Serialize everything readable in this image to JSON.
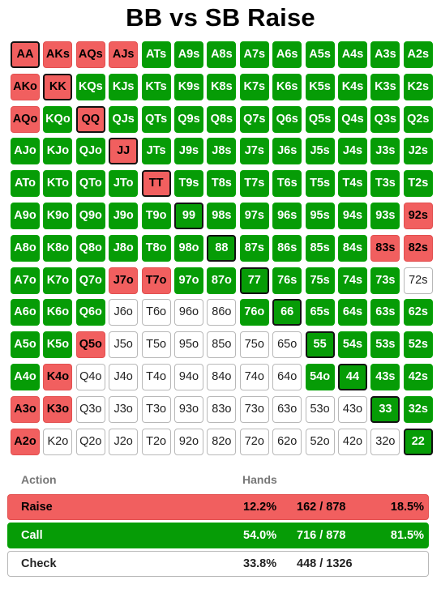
{
  "title": "BB vs SB Raise",
  "colors": {
    "raise": "#f15f5f",
    "call": "#069c06",
    "check": "#ffffff"
  },
  "grid": {
    "rows": [
      [
        "AA",
        "AKs",
        "AQs",
        "AJs",
        "ATs",
        "A9s",
        "A8s",
        "A7s",
        "A6s",
        "A5s",
        "A4s",
        "A3s",
        "A2s"
      ],
      [
        "AKo",
        "KK",
        "KQs",
        "KJs",
        "KTs",
        "K9s",
        "K8s",
        "K7s",
        "K6s",
        "K5s",
        "K4s",
        "K3s",
        "K2s"
      ],
      [
        "AQo",
        "KQo",
        "QQ",
        "QJs",
        "QTs",
        "Q9s",
        "Q8s",
        "Q7s",
        "Q6s",
        "Q5s",
        "Q4s",
        "Q3s",
        "Q2s"
      ],
      [
        "AJo",
        "KJo",
        "QJo",
        "JJ",
        "JTs",
        "J9s",
        "J8s",
        "J7s",
        "J6s",
        "J5s",
        "J4s",
        "J3s",
        "J2s"
      ],
      [
        "ATo",
        "KTo",
        "QTo",
        "JTo",
        "TT",
        "T9s",
        "T8s",
        "T7s",
        "T6s",
        "T5s",
        "T4s",
        "T3s",
        "T2s"
      ],
      [
        "A9o",
        "K9o",
        "Q9o",
        "J9o",
        "T9o",
        "99",
        "98s",
        "97s",
        "96s",
        "95s",
        "94s",
        "93s",
        "92s"
      ],
      [
        "A8o",
        "K8o",
        "Q8o",
        "J8o",
        "T8o",
        "98o",
        "88",
        "87s",
        "86s",
        "85s",
        "84s",
        "83s",
        "82s"
      ],
      [
        "A7o",
        "K7o",
        "Q7o",
        "J7o",
        "T7o",
        "97o",
        "87o",
        "77",
        "76s",
        "75s",
        "74s",
        "73s",
        "72s"
      ],
      [
        "A6o",
        "K6o",
        "Q6o",
        "J6o",
        "T6o",
        "96o",
        "86o",
        "76o",
        "66",
        "65s",
        "64s",
        "63s",
        "62s"
      ],
      [
        "A5o",
        "K5o",
        "Q5o",
        "J5o",
        "T5o",
        "95o",
        "85o",
        "75o",
        "65o",
        "55",
        "54s",
        "53s",
        "52s"
      ],
      [
        "A4o",
        "K4o",
        "Q4o",
        "J4o",
        "T4o",
        "94o",
        "84o",
        "74o",
        "64o",
        "54o",
        "44",
        "43s",
        "42s"
      ],
      [
        "A3o",
        "K3o",
        "Q3o",
        "J3o",
        "T3o",
        "93o",
        "83o",
        "73o",
        "63o",
        "53o",
        "43o",
        "33",
        "32s"
      ],
      [
        "A2o",
        "K2o",
        "Q2o",
        "J2o",
        "T2o",
        "92o",
        "82o",
        "72o",
        "62o",
        "52o",
        "42o",
        "32o",
        "22"
      ]
    ],
    "actions": [
      [
        "R",
        "R",
        "R",
        "R",
        "C",
        "C",
        "C",
        "C",
        "C",
        "C",
        "C",
        "C",
        "C"
      ],
      [
        "R",
        "R",
        "C",
        "C",
        "C",
        "C",
        "C",
        "C",
        "C",
        "C",
        "C",
        "C",
        "C"
      ],
      [
        "R",
        "C",
        "R",
        "C",
        "C",
        "C",
        "C",
        "C",
        "C",
        "C",
        "C",
        "C",
        "C"
      ],
      [
        "C",
        "C",
        "C",
        "R",
        "C",
        "C",
        "C",
        "C",
        "C",
        "C",
        "C",
        "C",
        "C"
      ],
      [
        "C",
        "C",
        "C",
        "C",
        "R",
        "C",
        "C",
        "C",
        "C",
        "C",
        "C",
        "C",
        "C"
      ],
      [
        "C",
        "C",
        "C",
        "C",
        "C",
        "C",
        "C",
        "C",
        "C",
        "C",
        "C",
        "C",
        "R"
      ],
      [
        "C",
        "C",
        "C",
        "C",
        "C",
        "C",
        "C",
        "C",
        "C",
        "C",
        "C",
        "R",
        "R"
      ],
      [
        "C",
        "C",
        "C",
        "R",
        "R",
        "C",
        "C",
        "C",
        "C",
        "C",
        "C",
        "C",
        "X"
      ],
      [
        "C",
        "C",
        "C",
        "X",
        "X",
        "X",
        "X",
        "C",
        "C",
        "C",
        "C",
        "C",
        "C"
      ],
      [
        "C",
        "C",
        "R",
        "X",
        "X",
        "X",
        "X",
        "X",
        "X",
        "C",
        "C",
        "C",
        "C"
      ],
      [
        "C",
        "R",
        "X",
        "X",
        "X",
        "X",
        "X",
        "X",
        "X",
        "C",
        "C",
        "C",
        "C"
      ],
      [
        "R",
        "R",
        "X",
        "X",
        "X",
        "X",
        "X",
        "X",
        "X",
        "X",
        "X",
        "C",
        "C"
      ],
      [
        "R",
        "X",
        "X",
        "X",
        "X",
        "X",
        "X",
        "X",
        "X",
        "X",
        "X",
        "X",
        "C"
      ]
    ]
  },
  "legend": {
    "header_action": "Action",
    "header_hands": "Hands",
    "rows": [
      {
        "label": "Raise",
        "percent": "12.2%",
        "count": "162 / 878",
        "share": "18.5%"
      },
      {
        "label": "Call",
        "percent": "54.0%",
        "count": "716 / 878",
        "share": "81.5%"
      },
      {
        "label": "Check",
        "percent": "33.8%",
        "count": "448 / 1326",
        "share": ""
      }
    ]
  }
}
